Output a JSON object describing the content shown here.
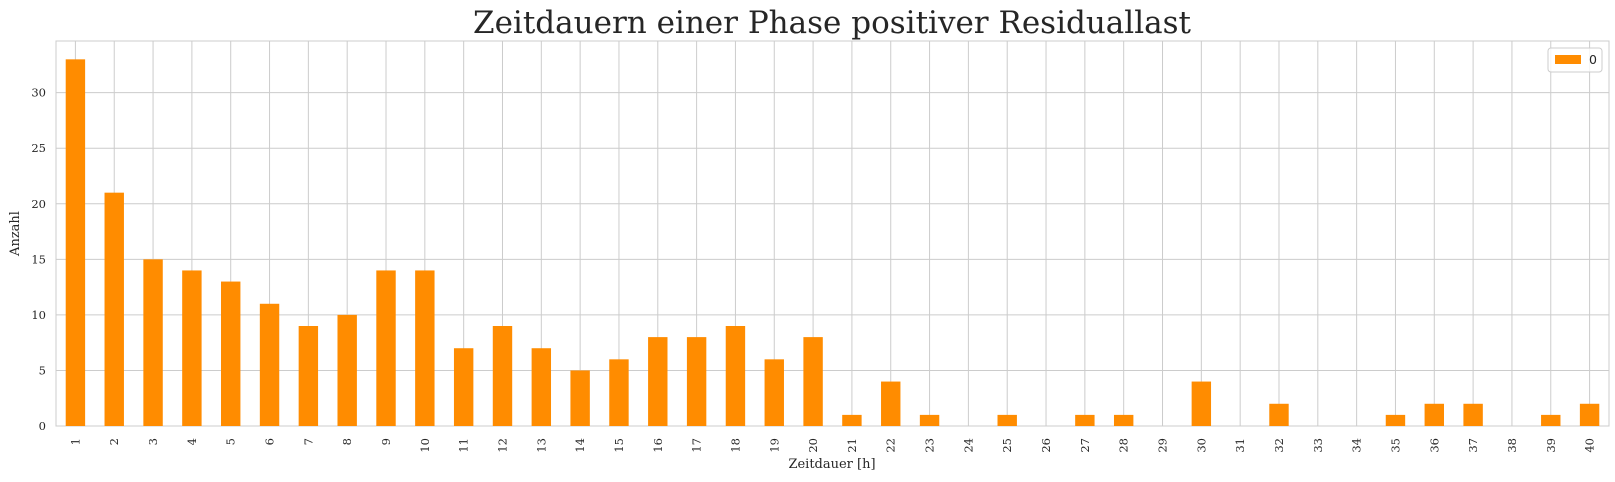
{
  "chart_data": {
    "type": "bar",
    "title": "Zeitdauern einer Phase positiver Residuallast",
    "xlabel": "Zeitdauer [h]",
    "ylabel": "Anzahl",
    "categories": [
      "1",
      "2",
      "3",
      "4",
      "5",
      "6",
      "7",
      "8",
      "9",
      "10",
      "11",
      "12",
      "13",
      "14",
      "15",
      "16",
      "17",
      "18",
      "19",
      "20",
      "21",
      "22",
      "23",
      "24",
      "25",
      "26",
      "27",
      "28",
      "29",
      "30",
      "31",
      "32",
      "33",
      "34",
      "35",
      "36",
      "37",
      "38",
      "39",
      "40"
    ],
    "series": [
      {
        "name": "0",
        "color": "#ff8c00",
        "values": [
          33,
          21,
          15,
          14,
          13,
          11,
          9,
          10,
          14,
          14,
          7,
          9,
          7,
          5,
          6,
          8,
          8,
          9,
          6,
          8,
          1,
          4,
          1,
          0,
          1,
          0,
          1,
          1,
          0,
          4,
          0,
          2,
          0,
          0,
          1,
          2,
          2,
          0,
          1,
          2
        ]
      }
    ],
    "yticks": [
      0,
      5,
      10,
      15,
      20,
      25,
      30
    ],
    "ylim": [
      0,
      34.65
    ],
    "grid": true,
    "legend_position": "top-right"
  }
}
